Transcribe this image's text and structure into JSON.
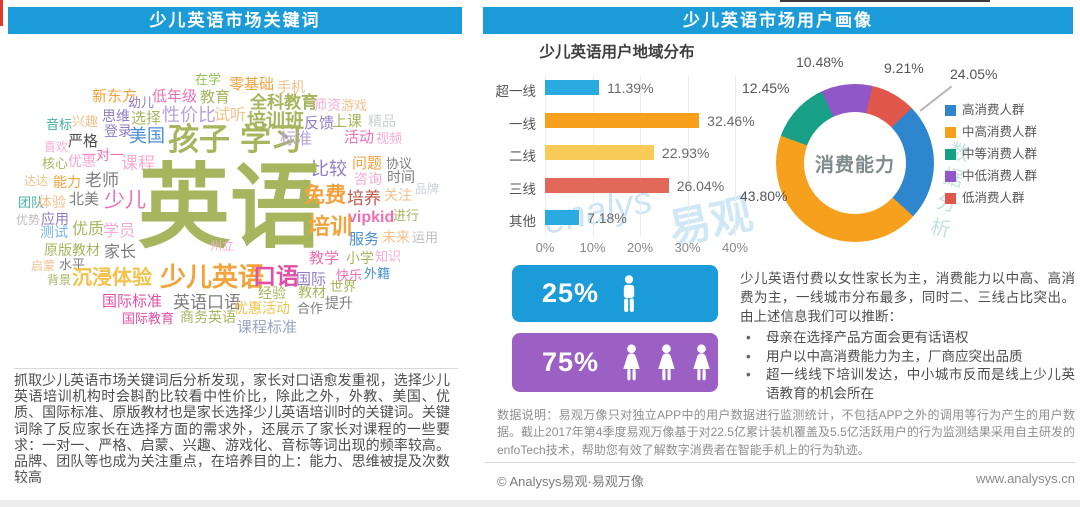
{
  "left": {
    "header": "少儿英语市场关键词",
    "wordcloud": {
      "palette": {
        "ol": "#a6b55e",
        "og": "#f2a33c",
        "lo": "#f3c08a",
        "pk": "#ef6fb4",
        "lp": "#f7abd4",
        "mg": "#e14fa6",
        "pu": "#8f7cc6",
        "lv": "#b4a3da",
        "bl": "#4a8fd3",
        "lb": "#74b9e8",
        "tl": "#45b0a0",
        "gn": "#93c24d",
        "gy": "#7d7d7d",
        "dg": "#4f4f4f",
        "lg": "#bdbdbd",
        "sv": "#cdd0d8",
        "dr": "#bf564b",
        "gd": "#f2c24a",
        "bg": "#98a6c4"
      },
      "words": [
        [
          "在学",
          185,
          29,
          13,
          "gn"
        ],
        [
          "零基础",
          219,
          33,
          15,
          "og"
        ],
        [
          "手机",
          267,
          36,
          14,
          "lo"
        ],
        [
          "新东方",
          82,
          45,
          15,
          "og"
        ],
        [
          "幼儿",
          118,
          52,
          13,
          "pu"
        ],
        [
          "低年级",
          142,
          45,
          15,
          "pk"
        ],
        [
          "教育",
          190,
          46,
          15,
          "ol"
        ],
        [
          "全科教育",
          240,
          50,
          17,
          "ol",
          1
        ],
        [
          "师资",
          303,
          54,
          14,
          "lp"
        ],
        [
          "游戏",
          331,
          55,
          13,
          "lo"
        ],
        [
          "思维",
          92,
          65,
          14,
          "pu"
        ],
        [
          "选择",
          121,
          67,
          15,
          "ol"
        ],
        [
          "性价比",
          152,
          62,
          18,
          "lv"
        ],
        [
          "试听",
          204,
          64,
          16,
          "lo"
        ],
        [
          "培训班",
          237,
          68,
          19,
          "ol",
          1
        ],
        [
          "反馈",
          294,
          72,
          15,
          "pu"
        ],
        [
          "上课",
          322,
          70,
          15,
          "ol"
        ],
        [
          "精品",
          358,
          70,
          14,
          "sv"
        ],
        [
          "音标",
          36,
          74,
          13,
          "tl"
        ],
        [
          "兴趣",
          62,
          71,
          13,
          "lo"
        ],
        [
          "登录",
          94,
          80,
          14,
          "pu"
        ],
        [
          "美国",
          119,
          83,
          18,
          "bl"
        ],
        [
          "孩子",
          158,
          80,
          31,
          "ol",
          1
        ],
        [
          "学习",
          230,
          80,
          31,
          "ol",
          1
        ],
        [
          "标准",
          270,
          88,
          16,
          "lv"
        ],
        [
          "活动",
          334,
          86,
          15,
          "pk"
        ],
        [
          "视频",
          366,
          88,
          13,
          "lp"
        ],
        [
          "喜欢",
          34,
          97,
          12,
          "lp"
        ],
        [
          "严格",
          58,
          90,
          15,
          "dg"
        ],
        [
          "一对一",
          72,
          104,
          14,
          "pk"
        ],
        [
          "课程",
          111,
          111,
          17,
          "lp"
        ],
        [
          "比较",
          301,
          116,
          18,
          "pu"
        ],
        [
          "问题",
          342,
          112,
          15,
          "og"
        ],
        [
          "协议",
          376,
          113,
          13,
          "gy"
        ],
        [
          "核心",
          32,
          113,
          13,
          "ol"
        ],
        [
          "优惠",
          58,
          110,
          14,
          "lp"
        ],
        [
          "咨询",
          344,
          128,
          14,
          "lp"
        ],
        [
          "时间",
          377,
          126,
          14,
          "gy"
        ],
        [
          "达达",
          14,
          131,
          12,
          "lo"
        ],
        [
          "能力",
          43,
          131,
          14,
          "og"
        ],
        [
          "老师",
          75,
          128,
          17,
          "gy"
        ],
        [
          "英语",
          128,
          118,
          92,
          "ol",
          1
        ],
        [
          "免费",
          294,
          141,
          21,
          "og",
          1
        ],
        [
          "培养",
          337,
          146,
          17,
          "dr"
        ],
        [
          "关注",
          374,
          144,
          14,
          "lo"
        ],
        [
          "品牌",
          405,
          139,
          12,
          "sv"
        ],
        [
          "团队",
          8,
          152,
          13,
          "tl"
        ],
        [
          "体验",
          28,
          151,
          14,
          "lo"
        ],
        [
          "北美",
          59,
          148,
          15,
          "gy"
        ],
        [
          "少儿",
          94,
          146,
          21,
          "pk"
        ],
        [
          "vipkid",
          338,
          166,
          16,
          "pk",
          1
        ],
        [
          "进行",
          383,
          165,
          13,
          "ol"
        ],
        [
          "优势",
          6,
          170,
          12,
          "lg"
        ],
        [
          "应用",
          31,
          168,
          14,
          "pu"
        ],
        [
          "测试",
          30,
          181,
          14,
          "lb"
        ],
        [
          "优质",
          62,
          178,
          16,
          "ol"
        ],
        [
          "学员",
          93,
          180,
          16,
          "lp"
        ],
        [
          "培训",
          298,
          172,
          22,
          "og",
          1
        ],
        [
          "服务",
          339,
          188,
          15,
          "bl"
        ],
        [
          "未来",
          372,
          186,
          14,
          "lo"
        ],
        [
          "运用",
          402,
          187,
          13,
          "lg"
        ],
        [
          "州立",
          200,
          196,
          12,
          "lp"
        ],
        [
          "原版教材",
          34,
          199,
          14,
          "ol"
        ],
        [
          "家长",
          94,
          201,
          16,
          "gy"
        ],
        [
          "教学",
          299,
          207,
          15,
          "pk"
        ],
        [
          "小学",
          336,
          207,
          14,
          "ol"
        ],
        [
          "知识",
          365,
          206,
          13,
          "lp"
        ],
        [
          "启蒙",
          21,
          216,
          12,
          "lo"
        ],
        [
          "水平",
          49,
          214,
          13,
          "gy"
        ],
        [
          "背景",
          37,
          230,
          12,
          "ol"
        ],
        [
          "沉浸体验",
          62,
          224,
          20,
          "gd",
          1
        ],
        [
          "少儿英语",
          150,
          220,
          26,
          "og",
          1
        ],
        [
          "口语",
          243,
          221,
          23,
          "mg",
          1
        ],
        [
          "国际",
          286,
          228,
          15,
          "pu"
        ],
        [
          "快乐",
          326,
          225,
          13,
          "pk"
        ],
        [
          "外籍",
          354,
          223,
          13,
          "bl"
        ],
        [
          "经验",
          248,
          242,
          14,
          "ol"
        ],
        [
          "教材",
          288,
          241,
          14,
          "ol"
        ],
        [
          "世界",
          320,
          236,
          13,
          "ol"
        ],
        [
          "国际标准",
          92,
          250,
          15,
          "mg"
        ],
        [
          "英语口语",
          163,
          250,
          17,
          "gy"
        ],
        [
          "优惠活动",
          224,
          257,
          14,
          "gd"
        ],
        [
          "合作",
          287,
          258,
          13,
          "gy"
        ],
        [
          "提升",
          315,
          252,
          14,
          "gy"
        ],
        [
          "国际教育",
          112,
          268,
          13,
          "mg"
        ],
        [
          "商务英语",
          170,
          266,
          14,
          "ol"
        ],
        [
          "课程标准",
          227,
          276,
          15,
          "bg"
        ]
      ]
    },
    "paragraph": "抓取少儿英语市场关键词后分析发现，家长对口语愈发重视，选择少儿英语培训机构时会斟酌比较看中性价比，除此之外，外教、美国、优质、国际标准、原版教材也是家长选择少儿英语培训时的关键词。关键词除了反应家长在选择方面的需求外，还展示了家长对课程的一些要求：一对一、严格、启蒙、兴趣、游戏化、音标等词出现的频率较高。品牌、团队等也成为关注重点，在培养目的上：能力、思维被提及次数较高"
  },
  "right": {
    "header": "少儿英语市场用户画像",
    "analysis": {
      "intro": "少儿英语付费以女性家长为主，消费能力以中高、高消费为主，一线城市分布最多，同时二、三线占比突出。由上述信息我们可以推断：",
      "bullets": [
        "母亲在选择产品方面会更有话语权",
        "用户以中高消费能力为主，厂商应突出品质",
        "超一线线下培训发达，中小城市反而是线上少儿英语教育的机会所在"
      ]
    },
    "note": "数据说明：易观万像只对独立APP中的用户数据进行监测统计，不包括APP之外的调用等行为产生的用户数据。截止2017年第4季度易观万像基于对22.5亿累计装机覆盖及5.5亿活跃用户的行为监测结果采用自主研发的enfoTech技术，帮助您有效了解数字消费者在智能手机上的行为轨迹。",
    "footer": {
      "left": "© Analysys易观·易观万像",
      "right": "www.analysys.cn"
    },
    "watermarks": {
      "script": "enalys",
      "brand": "易观",
      "vertical": "数据分析"
    }
  },
  "chart_data": [
    {
      "type": "bar",
      "orientation": "horizontal",
      "title": "少儿英语用户地域分布",
      "categories": [
        "超一线",
        "一线",
        "二线",
        "三线",
        "其他"
      ],
      "values": [
        11.39,
        32.46,
        22.93,
        26.04,
        7.18
      ],
      "unit": "%",
      "xlabel": "",
      "ylabel": "",
      "xlim": [
        0,
        40
      ],
      "x_ticks": [
        "0%",
        "10%",
        "20%",
        "30%",
        "40%"
      ],
      "grid": true,
      "bar_colors": [
        "#29abe2",
        "#f6a01d",
        "#f8ca57",
        "#e2685a",
        "#29abe2"
      ]
    },
    {
      "type": "pie",
      "subtype": "donut",
      "center_label": "消费能力",
      "slices": [
        {
          "label": "高消费人群",
          "value": 24.05,
          "color": "#2e86cf"
        },
        {
          "label": "中高消费人群",
          "value": 43.8,
          "color": "#f6a01d"
        },
        {
          "label": "中等消费人群",
          "value": 12.45,
          "color": "#17a086"
        },
        {
          "label": "中低消费人群",
          "value": 10.48,
          "color": "#9157c8"
        },
        {
          "label": "低消费人群",
          "value": 9.21,
          "color": "#e2574c"
        }
      ],
      "legend_position": "right",
      "draw_order": [
        3,
        4,
        0,
        1,
        2
      ],
      "start_angle_deg": -25
    },
    {
      "type": "pictogram",
      "items": [
        {
          "label": "male",
          "display": "25%",
          "value": 25,
          "icons": 1,
          "color": "#1b9cd8"
        },
        {
          "label": "female",
          "display": "75%",
          "value": 75,
          "icons": 3,
          "color": "#9c5fc4"
        }
      ]
    }
  ]
}
